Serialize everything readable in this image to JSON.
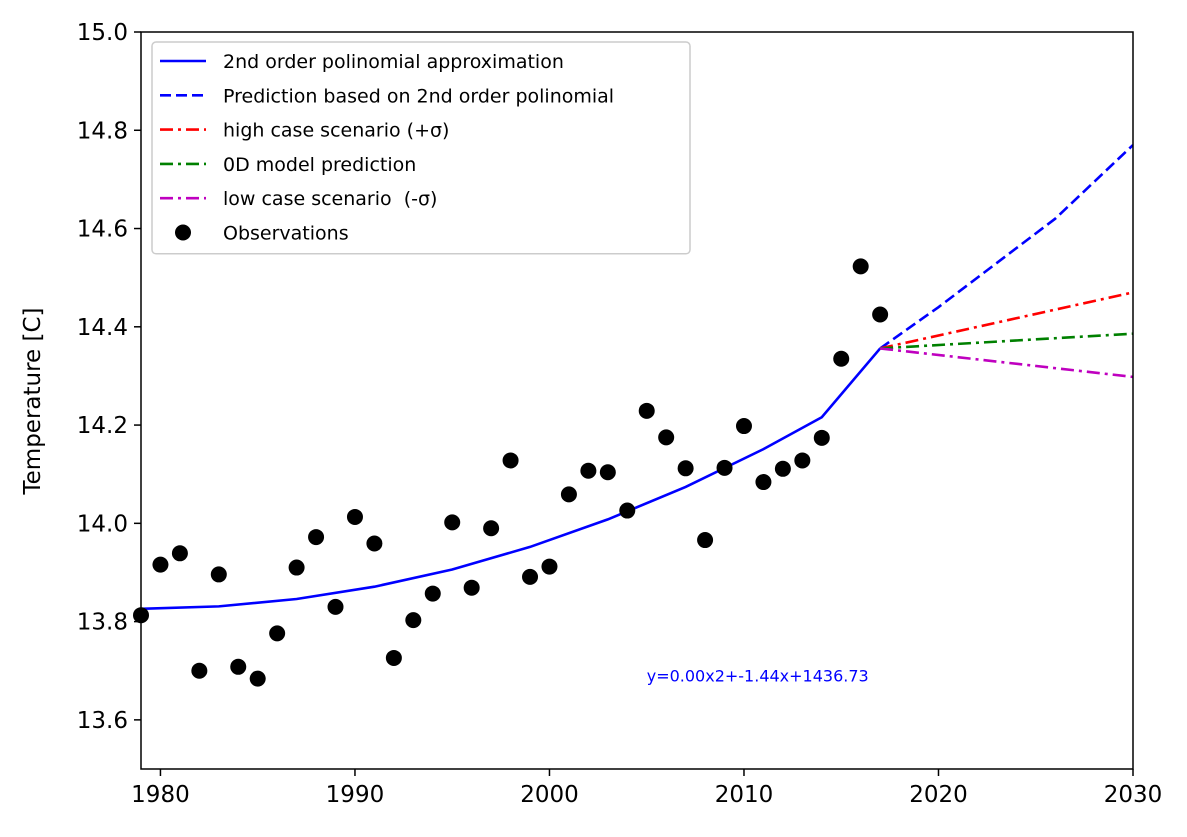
{
  "chart_data": {
    "type": "line",
    "title": "",
    "xlabel": "",
    "ylabel": "Temperature [C]",
    "xlim": [
      1979,
      2030
    ],
    "ylim": [
      13.5,
      15.0
    ],
    "xticks": [
      1980,
      1990,
      2000,
      2010,
      2020,
      2030
    ],
    "yticks": [
      13.6,
      13.8,
      14.0,
      14.2,
      14.4,
      14.6,
      14.8,
      15.0
    ],
    "ytick_labels": [
      "13.6",
      "13.8",
      "14.0",
      "14.2",
      "14.4",
      "14.6",
      "14.8",
      "15.0"
    ],
    "grid": false,
    "legend_position": "upper-left",
    "annotation": "y=0.00x2+-1.44x+1436.73",
    "annotation_position": [
      2005,
      13.69
    ],
    "annotation_color": "#0000ff",
    "series": [
      {
        "name": "2nd order polinomial approximation",
        "kind": "line",
        "style": "solid",
        "color": "#0000ff",
        "x": [
          1979,
          1983,
          1987,
          1991,
          1995,
          1999,
          2003,
          2007,
          2011,
          2014,
          2017
        ],
        "y": [
          13.826,
          13.831,
          13.846,
          13.871,
          13.906,
          13.952,
          14.008,
          14.074,
          14.151,
          14.216,
          14.356
        ]
      },
      {
        "name": "Prediction based on 2nd order polinomial",
        "kind": "line",
        "style": "dashed",
        "color": "#0000ff",
        "x": [
          2017,
          2020,
          2023,
          2026,
          2030
        ],
        "y": [
          14.356,
          14.44,
          14.53,
          14.62,
          14.77
        ]
      },
      {
        "name": "high case scenario (+σ)",
        "kind": "line",
        "style": "dashdot",
        "color": "#ff0000",
        "x": [
          2017,
          2030
        ],
        "y": [
          14.356,
          14.47
        ]
      },
      {
        "name": "0D model prediction",
        "kind": "line",
        "style": "dashdot",
        "color": "#008000",
        "x": [
          2017,
          2030
        ],
        "y": [
          14.356,
          14.386
        ]
      },
      {
        "name": "low case scenario  (-σ)",
        "kind": "line",
        "style": "dashdot",
        "color": "#bf00bf",
        "x": [
          2017,
          2030
        ],
        "y": [
          14.356,
          14.298
        ]
      },
      {
        "name": "Observations",
        "kind": "scatter",
        "color": "#000000",
        "x": [
          1979,
          1980,
          1981,
          1982,
          1983,
          1984,
          1985,
          1986,
          1987,
          1988,
          1989,
          1990,
          1991,
          1992,
          1993,
          1994,
          1995,
          1996,
          1997,
          1998,
          1999,
          2000,
          2001,
          2002,
          2003,
          2004,
          2005,
          2006,
          2007,
          2008,
          2009,
          2010,
          2011,
          2012,
          2013,
          2014,
          2015,
          2016,
          2017
        ],
        "y": [
          13.813,
          13.916,
          13.939,
          13.7,
          13.896,
          13.708,
          13.684,
          13.776,
          13.91,
          13.972,
          13.83,
          14.013,
          13.959,
          13.726,
          13.803,
          13.857,
          14.002,
          13.869,
          13.99,
          14.128,
          13.891,
          13.912,
          14.059,
          14.107,
          14.104,
          14.026,
          14.229,
          14.175,
          14.112,
          13.966,
          14.113,
          14.198,
          14.084,
          14.111,
          14.128,
          14.174,
          14.335,
          14.523,
          14.425
        ]
      }
    ]
  }
}
